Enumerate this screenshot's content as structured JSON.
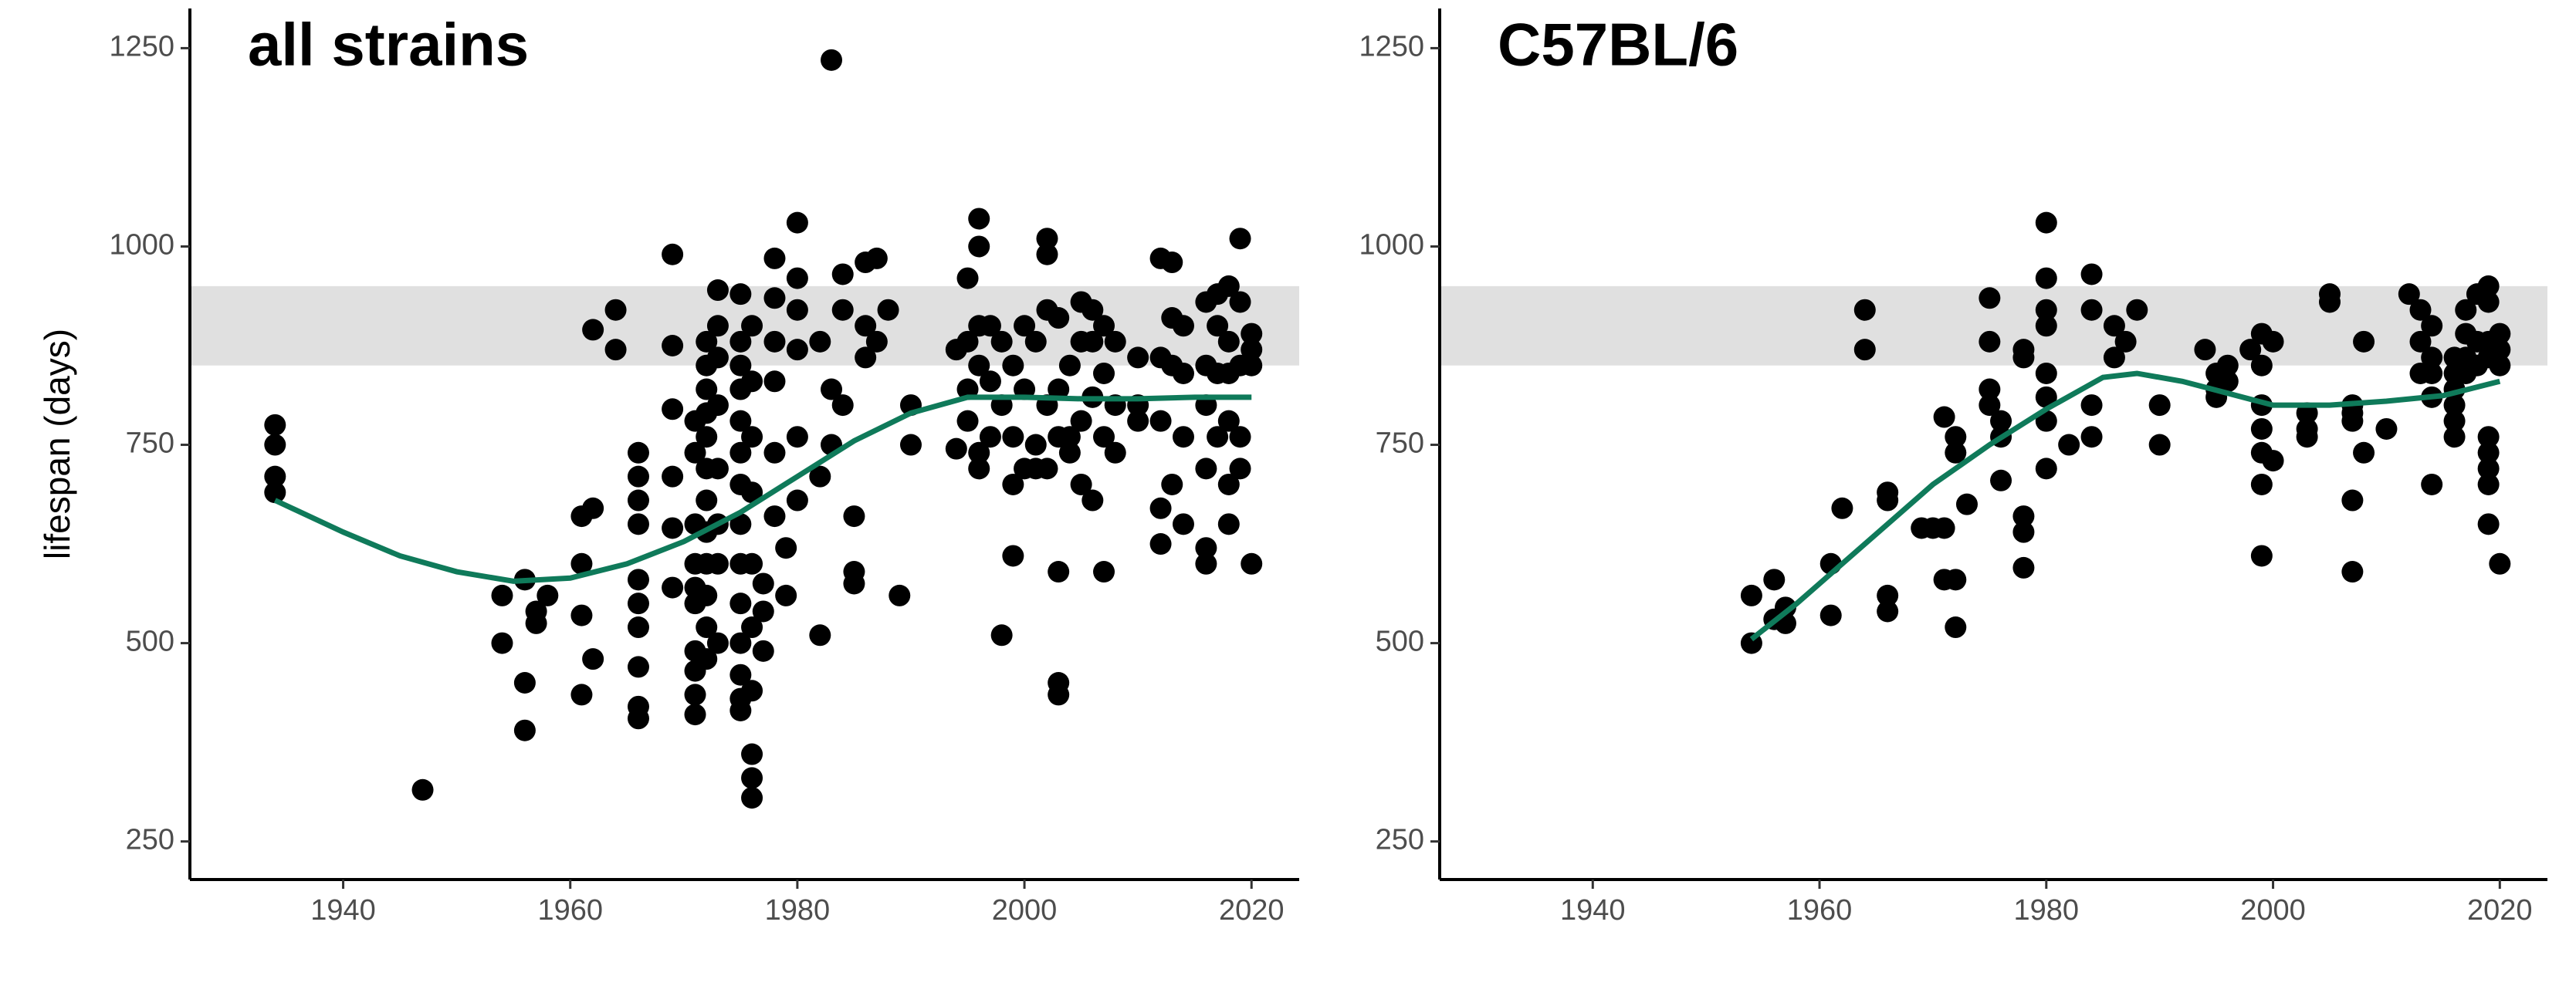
{
  "chart_data": [
    {
      "type": "scatter",
      "title": "all strains",
      "y_label": "lifespan (days)",
      "xlim": [
        1926.5,
        2024.2
      ],
      "ylim": [
        202,
        1300
      ],
      "xticks": [
        1940,
        1960,
        1980,
        2000,
        2020
      ],
      "yticks": [
        250,
        500,
        750,
        1000,
        1250
      ],
      "band": [
        850,
        950
      ],
      "band_color": "#e0e0e0",
      "color": "#000000",
      "x": [
        1934,
        1934,
        1934,
        1934,
        1947,
        1954,
        1954,
        1956,
        1956,
        1956,
        1957,
        1957,
        1958,
        1961,
        1961,
        1961,
        1961,
        1962,
        1962,
        1962,
        1964,
        1964,
        1966,
        1966,
        1966,
        1966,
        1966,
        1966,
        1966,
        1966,
        1966,
        1966,
        1969,
        1969,
        1969,
        1969,
        1969,
        1969,
        1971,
        1971,
        1971,
        1971,
        1971,
        1971,
        1971,
        1971,
        1971,
        1971,
        1972,
        1972,
        1972,
        1972,
        1972,
        1972,
        1972,
        1972,
        1972,
        1972,
        1972,
        1972,
        1973,
        1973,
        1973,
        1973,
        1973,
        1973,
        1973,
        1973,
        1975,
        1975,
        1975,
        1975,
        1975,
        1975,
        1975,
        1975,
        1975,
        1975,
        1975,
        1975,
        1975,
        1975,
        1976,
        1976,
        1976,
        1976,
        1976,
        1976,
        1976,
        1976,
        1976,
        1976,
        1977,
        1977,
        1977,
        1978,
        1978,
        1978,
        1978,
        1978,
        1978,
        1979,
        1979,
        1980,
        1980,
        1980,
        1980,
        1980,
        1980,
        1982,
        1982,
        1982,
        1983,
        1983,
        1983,
        1984,
        1984,
        1984,
        1985,
        1985,
        1985,
        1986,
        1986,
        1986,
        1987,
        1987,
        1988,
        1989,
        1990,
        1990,
        1994,
        1994,
        1995,
        1995,
        1995,
        1995,
        1996,
        1996,
        1996,
        1996,
        1996,
        1996,
        1997,
        1997,
        1997,
        1998,
        1998,
        1998,
        1999,
        1999,
        1999,
        1999,
        2000,
        2000,
        2000,
        2001,
        2001,
        2001,
        2002,
        2002,
        2002,
        2002,
        2002,
        2003,
        2003,
        2003,
        2003,
        2003,
        2003,
        2004,
        2004,
        2004,
        2005,
        2005,
        2005,
        2005,
        2006,
        2006,
        2006,
        2006,
        2007,
        2007,
        2007,
        2007,
        2008,
        2008,
        2008,
        2010,
        2010,
        2010,
        2012,
        2012,
        2012,
        2012,
        2012,
        2013,
        2013,
        2013,
        2013,
        2014,
        2014,
        2014,
        2014,
        2016,
        2016,
        2016,
        2016,
        2016,
        2016,
        2017,
        2017,
        2017,
        2017,
        2018,
        2018,
        2018,
        2018,
        2018,
        2018,
        2019,
        2019,
        2019,
        2019,
        2019,
        2020,
        2020,
        2020,
        2020
      ],
      "values": [
        775,
        750,
        710,
        690,
        315,
        560,
        500,
        450,
        390,
        580,
        525,
        540,
        560,
        660,
        600,
        535,
        435,
        895,
        480,
        670,
        920,
        870,
        740,
        710,
        680,
        650,
        580,
        550,
        520,
        470,
        420,
        405,
        990,
        875,
        795,
        710,
        645,
        570,
        780,
        740,
        650,
        600,
        570,
        550,
        490,
        465,
        435,
        410,
        880,
        850,
        820,
        790,
        760,
        720,
        680,
        640,
        600,
        560,
        520,
        480,
        945,
        900,
        860,
        800,
        720,
        650,
        600,
        500,
        940,
        880,
        850,
        820,
        780,
        740,
        700,
        650,
        600,
        550,
        500,
        460,
        430,
        415,
        900,
        830,
        760,
        690,
        600,
        520,
        440,
        360,
        330,
        305,
        575,
        540,
        490,
        985,
        935,
        880,
        830,
        740,
        660,
        620,
        560,
        1030,
        960,
        920,
        870,
        760,
        680,
        880,
        710,
        510,
        1235,
        820,
        750,
        965,
        920,
        800,
        660,
        590,
        575,
        980,
        900,
        860,
        985,
        880,
        920,
        560,
        800,
        750,
        870,
        745,
        960,
        880,
        820,
        780,
        1035,
        1000,
        900,
        850,
        740,
        720,
        900,
        830,
        760,
        880,
        800,
        510,
        850,
        760,
        700,
        610,
        900,
        820,
        720,
        880,
        750,
        720,
        1010,
        990,
        920,
        800,
        720,
        910,
        820,
        760,
        590,
        450,
        435,
        850,
        760,
        740,
        930,
        880,
        780,
        700,
        920,
        880,
        810,
        680,
        900,
        840,
        760,
        590,
        880,
        800,
        740,
        860,
        800,
        780,
        985,
        860,
        780,
        670,
        625,
        980,
        910,
        850,
        700,
        900,
        840,
        760,
        650,
        930,
        850,
        800,
        720,
        620,
        600,
        940,
        900,
        840,
        760,
        950,
        880,
        840,
        780,
        700,
        650,
        1010,
        930,
        850,
        760,
        720,
        890,
        870,
        850,
        600
      ],
      "trend": {
        "color": "#0f7a5a",
        "x": [
          1934,
          1940,
          1945,
          1950,
          1955,
          1960,
          1965,
          1970,
          1975,
          1980,
          1985,
          1990,
          1995,
          2000,
          2005,
          2010,
          2015,
          2020
        ],
        "values": [
          680,
          640,
          610,
          590,
          578,
          582,
          600,
          628,
          665,
          710,
          755,
          790,
          810,
          810,
          808,
          808,
          810,
          810
        ]
      }
    },
    {
      "type": "scatter",
      "title": "C57BL/6",
      "xlim": [
        1926.5,
        2024.2
      ],
      "ylim": [
        202,
        1300
      ],
      "xticks": [
        1940,
        1960,
        1980,
        2000,
        2020
      ],
      "yticks": [
        250,
        500,
        750,
        1000,
        1250
      ],
      "band": [
        850,
        950
      ],
      "band_color": "#e0e0e0",
      "color": "#000000",
      "x": [
        1954,
        1954,
        1956,
        1956,
        1957,
        1957,
        1961,
        1961,
        1962,
        1964,
        1964,
        1966,
        1966,
        1966,
        1966,
        1969,
        1970,
        1971,
        1971,
        1971,
        1972,
        1972,
        1972,
        1972,
        1973,
        1975,
        1975,
        1975,
        1975,
        1976,
        1976,
        1976,
        1978,
        1978,
        1978,
        1978,
        1978,
        1980,
        1980,
        1980,
        1980,
        1980,
        1980,
        1980,
        1980,
        1982,
        1984,
        1984,
        1984,
        1984,
        1986,
        1986,
        1987,
        1988,
        1990,
        1990,
        1994,
        1995,
        1995,
        1995,
        1996,
        1996,
        1998,
        1999,
        1999,
        1999,
        1999,
        1999,
        1999,
        1999,
        2000,
        2000,
        2003,
        2003,
        2003,
        2005,
        2005,
        2007,
        2007,
        2007,
        2007,
        2007,
        2008,
        2008,
        2010,
        2012,
        2013,
        2013,
        2013,
        2014,
        2014,
        2014,
        2014,
        2014,
        2016,
        2016,
        2016,
        2016,
        2016,
        2016,
        2017,
        2017,
        2017,
        2017,
        2018,
        2018,
        2018,
        2019,
        2019,
        2019,
        2019,
        2019,
        2019,
        2019,
        2019,
        2019,
        2020,
        2020,
        2020,
        2020
      ],
      "values": [
        560,
        500,
        580,
        530,
        545,
        525,
        600,
        535,
        670,
        920,
        870,
        690,
        680,
        560,
        540,
        645,
        645,
        785,
        645,
        580,
        760,
        740,
        580,
        520,
        675,
        935,
        880,
        820,
        800,
        780,
        760,
        705,
        870,
        860,
        660,
        640,
        595,
        1030,
        960,
        920,
        900,
        840,
        810,
        780,
        720,
        750,
        965,
        920,
        800,
        760,
        900,
        860,
        880,
        920,
        800,
        750,
        870,
        840,
        820,
        810,
        850,
        830,
        870,
        890,
        850,
        800,
        770,
        740,
        700,
        610,
        880,
        730,
        790,
        770,
        760,
        940,
        930,
        800,
        790,
        780,
        680,
        590,
        880,
        740,
        770,
        940,
        920,
        880,
        840,
        900,
        860,
        840,
        810,
        700,
        860,
        840,
        820,
        800,
        780,
        760,
        920,
        890,
        860,
        840,
        940,
        880,
        850,
        950,
        930,
        880,
        860,
        760,
        740,
        720,
        700,
        650,
        890,
        870,
        850,
        600
      ],
      "trend": {
        "color": "#0f7a5a",
        "x": [
          1954,
          1958,
          1962,
          1966,
          1970,
          1975,
          1980,
          1985,
          1988,
          1992,
          1996,
          2000,
          2005,
          2010,
          2015,
          2020
        ],
        "values": [
          505,
          550,
          600,
          650,
          700,
          750,
          795,
          835,
          840,
          830,
          815,
          800,
          800,
          805,
          812,
          830
        ]
      }
    }
  ]
}
